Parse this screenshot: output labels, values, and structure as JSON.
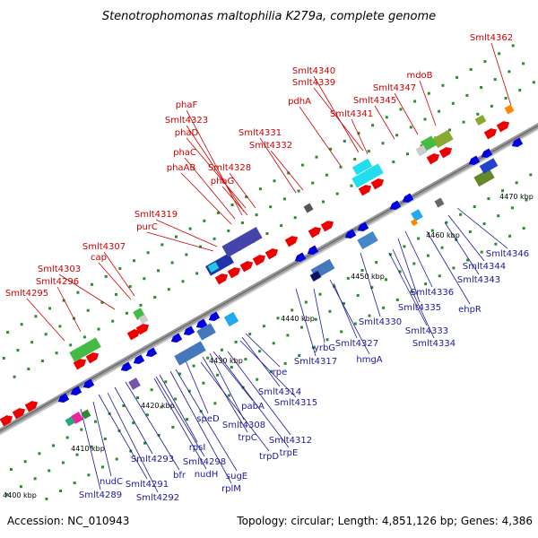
{
  "title": "Stenotrophomonas maltophilia K279a, complete genome",
  "footer": {
    "accession": "Accession: NC_010943",
    "stats": "Topology: circular; Length: 4,851,126 bp; Genes: 4,386"
  },
  "scale_labels": [
    "4400 kbp",
    "4410 kbp",
    "4420 kbp",
    "4430 kbp",
    "4440 kbp",
    "4450 kbp",
    "4460 kbp",
    "4470 kbp"
  ],
  "upper_gene_labels": [
    "Smlt4362",
    "Smlt4340",
    "Smlt4339",
    "mdoB",
    "Smlt4347",
    "Smlt4345",
    "pdhA",
    "Smlt4341",
    "phaF",
    "Smlt4323",
    "phaD",
    "Smlt4331",
    "Smlt4332",
    "phaC",
    "Smlt4328",
    "phaAB",
    "phaG",
    "Smlt4319",
    "purC",
    "Smlt4307",
    "cap",
    "Smlt4303",
    "Smlt4296",
    "Smlt4295"
  ],
  "lower_gene_labels": [
    "Smlt4346",
    "Smlt4344",
    "Smlt4343",
    "ehpR",
    "Smlt4336",
    "Smlt4335",
    "Smlt4330",
    "Smlt4333",
    "Smlt4334",
    "Smlt4327",
    "yrbG",
    "hmgA",
    "Smlt4317",
    "rpe",
    "Smlt4314",
    "Smlt4315",
    "pabA",
    "Smlt4308",
    "speD",
    "Smlt4312",
    "trpC",
    "trpE",
    "trpD",
    "rpsI",
    "Smlt4298",
    "sugE",
    "nudH",
    "rplM",
    "Smlt4293",
    "bfr",
    "Smlt4291",
    "Smlt4292",
    "nudC",
    "Smlt4289"
  ],
  "colors": {
    "forward": "#ee0000",
    "reverse": "#0000dd",
    "backbone": "#888888",
    "upper_label": "#cc0000",
    "lower_label": "#1a1a99"
  }
}
